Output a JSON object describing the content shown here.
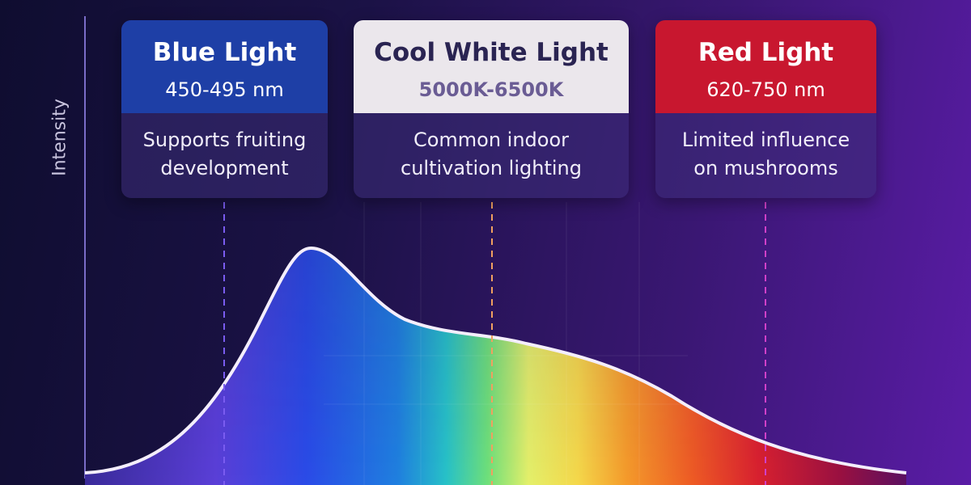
{
  "axis_label": "Intensity",
  "cards": [
    {
      "title": "Blue Light",
      "range": "450-495 nm",
      "description": [
        "Supports fruiting",
        "development"
      ]
    },
    {
      "title": "Cool White Light",
      "range": "5000K-6500K",
      "description": [
        "Common indoor",
        "cultivation lighting"
      ]
    },
    {
      "title": "Red Light",
      "range": "620-750 nm",
      "description": [
        "Limited influence",
        "on mushrooms"
      ]
    }
  ]
}
